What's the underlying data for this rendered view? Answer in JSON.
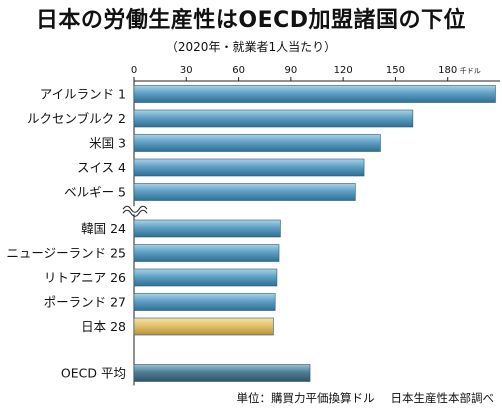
{
  "title": "日本の労働生産性はOECD加盟諸国の下位",
  "subtitle": "（2020年・就業者1人当たり）",
  "source": {
    "unit_note": "単位：購買力平価換算ドル",
    "credit": "日本生産性本部調べ"
  },
  "colors": {
    "bar": "#4d8fb3",
    "bar_highlight": "#e0c06a",
    "bar_average": "#3f6f85",
    "axis": "#222222"
  },
  "chart_data": {
    "type": "bar",
    "orientation": "horizontal",
    "xlim": [
      0,
      210
    ],
    "x_ticks": [
      "0",
      "30",
      "60",
      "90",
      "120",
      "150",
      "180"
    ],
    "x_unit": "千ドル",
    "axis_break_after_index": 4,
    "categories": [
      "アイルランド 1",
      "ルクセンブルク 2",
      "米国 3",
      "スイス 4",
      "ベルギー 5",
      "韓国 24",
      "ニュージーランド 25",
      "リトアニア 26",
      "ポーランド 27",
      "日本 28",
      "OECD 平均"
    ],
    "values": [
      207.4,
      160.0,
      141.4,
      132.0,
      127.0,
      84.0,
      83.2,
      82.0,
      81.0,
      80.0,
      101.0
    ],
    "highlight": "日本 28",
    "average": "OECD 平均"
  }
}
